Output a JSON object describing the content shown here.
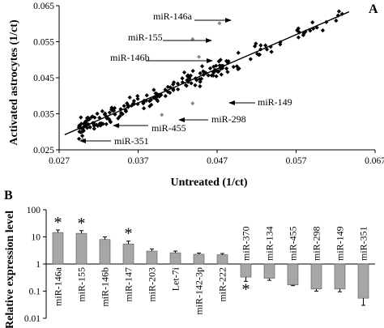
{
  "chart_data": [
    {
      "panel": "A",
      "type": "scatter",
      "xlabel": "Untreated (1/ct)",
      "ylabel": "Activated astrocytes (1/ct)",
      "xlim": [
        0.027,
        0.067
      ],
      "ylim": [
        0.025,
        0.065
      ],
      "x_ticks": [
        "0.027",
        "0.037",
        "0.047",
        "0.057",
        "0.067"
      ],
      "y_ticks": [
        "0.025",
        "0.035",
        "0.045",
        "0.055",
        "0.065"
      ],
      "trendline": [
        [
          0.0277,
          0.0292
        ],
        [
          0.0637,
          0.0633
        ]
      ],
      "grid": false,
      "marker_color": "#000000",
      "highlight_color": "#8c8c8c",
      "highlighted": [
        {
          "label": "miR-146a",
          "x": 0.0473,
          "y": 0.0601
        },
        {
          "label": "miR-155",
          "x": 0.0439,
          "y": 0.0557
        },
        {
          "label": "miR-146b",
          "x": 0.0447,
          "y": 0.0508
        },
        {
          "label": "miR-149",
          "x": 0.0439,
          "y": 0.0379
        },
        {
          "label": "miR-298",
          "x": 0.04,
          "y": 0.0347
        },
        {
          "label": "miR-455",
          "x": 0.0344,
          "y": 0.0316
        },
        {
          "label": "miR-351",
          "x": 0.03,
          "y": 0.0278
        }
      ],
      "seed": 7
    },
    {
      "panel": "B",
      "type": "bar",
      "ylabel": "Relative expression level",
      "yscale": "log",
      "ylim": [
        0.01,
        100
      ],
      "y_ticks": [
        "0.01",
        "0.1",
        "1",
        "10",
        "100"
      ],
      "bar_color": "#a6a6a6",
      "categories": [
        "miR-146a",
        "miR-155",
        "miR-146b",
        "miR-147",
        "miR-203",
        "Let-7i",
        "miR-142-3p",
        "miR-222",
        "miR-370",
        "miR-134",
        "miR-455",
        "miR-298",
        "miR-149",
        "miR-351"
      ],
      "values": [
        14.5,
        13.5,
        8.0,
        5.5,
        3.0,
        2.6,
        2.3,
        2.2,
        0.33,
        0.3,
        0.17,
        0.12,
        0.12,
        0.055
      ],
      "errors": [
        3.5,
        3.5,
        2.0,
        1.5,
        0.6,
        0.4,
        0.25,
        0.25,
        0.1,
        0.05,
        0.01,
        0.02,
        0.025,
        0.025
      ],
      "significant": [
        true,
        true,
        false,
        true,
        false,
        false,
        false,
        false,
        true,
        false,
        false,
        false,
        false,
        false
      ],
      "star_label": "*"
    }
  ]
}
